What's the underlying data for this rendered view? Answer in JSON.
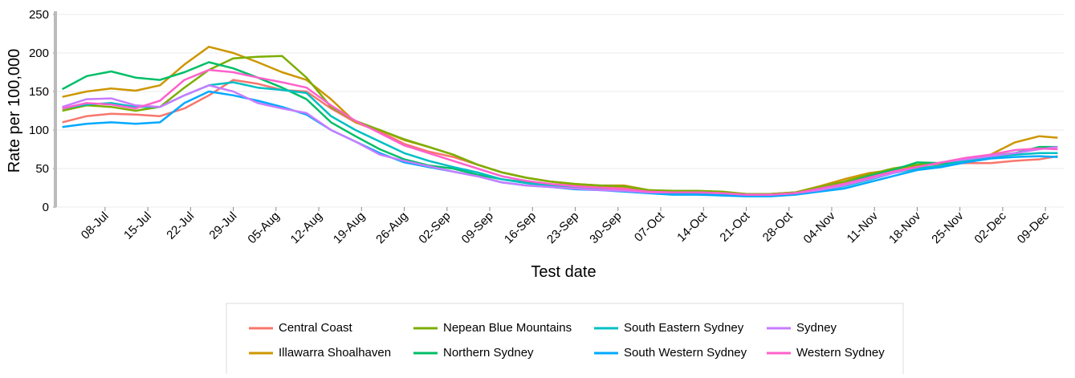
{
  "chart_data": {
    "type": "line",
    "x_label": "Test date",
    "y_label": "Rate per 100,000",
    "x": [
      "01-Jul",
      "05-Jul",
      "09-Jul",
      "13-Jul",
      "17-Jul",
      "21-Jul",
      "25-Jul",
      "29-Jul",
      "02-Aug",
      "06-Aug",
      "10-Aug",
      "14-Aug",
      "18-Aug",
      "22-Aug",
      "26-Aug",
      "30-Aug",
      "03-Sep",
      "07-Sep",
      "11-Sep",
      "15-Sep",
      "19-Sep",
      "23-Sep",
      "27-Sep",
      "01-Oct",
      "05-Oct",
      "09-Oct",
      "13-Oct",
      "17-Oct",
      "21-Oct",
      "25-Oct",
      "29-Oct",
      "02-Nov",
      "06-Nov",
      "10-Nov",
      "14-Nov",
      "18-Nov",
      "22-Nov",
      "26-Nov",
      "30-Nov",
      "04-Dec",
      "08-Dec",
      "11-Dec"
    ],
    "xlim": [
      "30-Jun",
      "12-Dec"
    ],
    "xticks": [
      "08-Jul",
      "15-Jul",
      "22-Jul",
      "29-Jul",
      "05-Aug",
      "12-Aug",
      "19-Aug",
      "26-Aug",
      "02-Sep",
      "09-Sep",
      "16-Sep",
      "23-Sep",
      "30-Sep",
      "07-Oct",
      "14-Oct",
      "21-Oct",
      "28-Oct",
      "04-Nov",
      "11-Nov",
      "18-Nov",
      "25-Nov",
      "02-Dec",
      "09-Dec"
    ],
    "ylim": [
      0,
      250
    ],
    "yticks": [
      0,
      50,
      100,
      150,
      200,
      250
    ],
    "grid": true,
    "series": [
      {
        "name": "Central Coast",
        "color": "#F8766D",
        "values": [
          110,
          118,
          121,
          120,
          118,
          128,
          145,
          165,
          160,
          152,
          150,
          128,
          110,
          98,
          82,
          72,
          65,
          55,
          45,
          38,
          33,
          29,
          27,
          25,
          21,
          20,
          19,
          18,
          17,
          17,
          19,
          25,
          32,
          40,
          47,
          54,
          56,
          57,
          57,
          60,
          62,
          66
        ]
      },
      {
        "name": "Illawarra Shoalhaven",
        "color": "#CD9600",
        "values": [
          143,
          150,
          154,
          151,
          158,
          185,
          208,
          200,
          188,
          175,
          165,
          140,
          110,
          100,
          87,
          78,
          68,
          55,
          45,
          38,
          33,
          30,
          28,
          28,
          22,
          20,
          20,
          19,
          17,
          17,
          19,
          27,
          36,
          44,
          48,
          52,
          58,
          62,
          68,
          84,
          92,
          90
        ]
      },
      {
        "name": "Nepean Blue Mountains",
        "color": "#7CAE00",
        "values": [
          125,
          132,
          130,
          125,
          130,
          155,
          178,
          193,
          195,
          196,
          168,
          130,
          112,
          100,
          88,
          78,
          68,
          55,
          45,
          38,
          33,
          30,
          28,
          27,
          22,
          21,
          21,
          20,
          17,
          17,
          19,
          26,
          33,
          42,
          50,
          55,
          57,
          62,
          67,
          70,
          76,
          78
        ]
      },
      {
        "name": "Northern Sydney",
        "color": "#00BE67",
        "values": [
          153,
          170,
          176,
          168,
          165,
          175,
          188,
          180,
          168,
          155,
          140,
          110,
          92,
          75,
          62,
          54,
          50,
          42,
          36,
          32,
          29,
          26,
          24,
          22,
          19,
          18,
          18,
          17,
          15,
          15,
          17,
          24,
          30,
          40,
          48,
          58,
          57,
          60,
          64,
          70,
          78,
          78
        ]
      },
      {
        "name": "South Eastern Sydney",
        "color": "#00BFC4",
        "values": [
          128,
          133,
          135,
          130,
          130,
          145,
          158,
          162,
          155,
          152,
          148,
          118,
          100,
          85,
          70,
          60,
          52,
          45,
          36,
          31,
          28,
          25,
          23,
          22,
          19,
          18,
          18,
          17,
          15,
          15,
          17,
          22,
          27,
          35,
          44,
          50,
          54,
          60,
          65,
          68,
          70,
          70
        ]
      },
      {
        "name": "South Western Sydney",
        "color": "#00A9FF",
        "values": [
          104,
          108,
          110,
          108,
          110,
          135,
          150,
          145,
          138,
          130,
          120,
          100,
          85,
          70,
          58,
          52,
          46,
          40,
          32,
          28,
          26,
          23,
          22,
          20,
          18,
          16,
          16,
          15,
          14,
          14,
          16,
          20,
          24,
          32,
          40,
          48,
          52,
          58,
          63,
          65,
          66,
          65
        ]
      },
      {
        "name": "Sydney",
        "color": "#C77CFF",
        "values": [
          130,
          140,
          141,
          132,
          130,
          145,
          158,
          150,
          135,
          128,
          122,
          100,
          85,
          68,
          60,
          53,
          46,
          40,
          32,
          28,
          26,
          24,
          22,
          21,
          19,
          19,
          19,
          18,
          16,
          16,
          18,
          22,
          28,
          36,
          44,
          52,
          58,
          62,
          66,
          70,
          75,
          78
        ]
      },
      {
        "name": "Western Sydney",
        "color": "#FF61CC",
        "values": [
          128,
          135,
          133,
          128,
          138,
          165,
          178,
          175,
          168,
          162,
          155,
          132,
          112,
          96,
          80,
          70,
          60,
          50,
          40,
          34,
          30,
          27,
          25,
          23,
          20,
          19,
          19,
          18,
          16,
          16,
          18,
          24,
          30,
          38,
          46,
          52,
          58,
          64,
          68,
          74,
          76,
          75
        ]
      }
    ]
  }
}
